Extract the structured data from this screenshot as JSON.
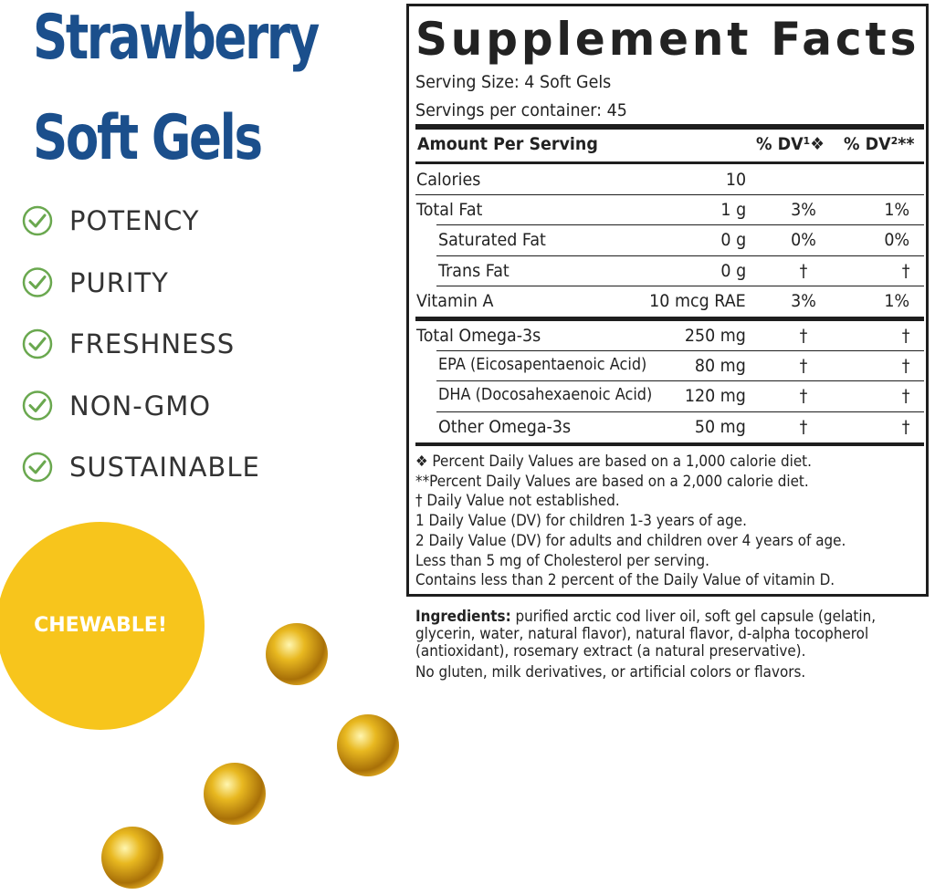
{
  "product": {
    "title_lines": [
      "Strawberry",
      "Soft Gels"
    ],
    "features": [
      "POTENCY",
      "PURITY",
      "FRESHNESS",
      "NON-GMO",
      "SUSTAINABLE"
    ],
    "badge": "CHEWABLE!"
  },
  "facts": {
    "title": "Supplement Facts",
    "serving_size": "Serving Size: 4 Soft Gels",
    "servings": "Servings per container: 45",
    "header": [
      "Amount Per Serving",
      "% DV¹❖",
      "% DV²**"
    ],
    "sections": [
      [
        {
          "name": "Calories",
          "amount": "10"
        },
        {
          "name": "Total Fat",
          "amount": "1 g",
          "dv1": "3%",
          "dv2": "1%",
          "subrows": [
            {
              "name": "Saturated Fat",
              "amount": "0 g",
              "dv1": "0%",
              "dv2": "0%"
            },
            {
              "name": "Trans Fat",
              "amount": "0 g",
              "dv1": "†",
              "dv2": "†"
            }
          ]
        },
        {
          "name": "Vitamin A",
          "amount": "10 mcg RAE",
          "dv1": "3%",
          "dv2": "1%"
        }
      ],
      [
        {
          "name": "Total Omega-3s",
          "amount": "250 mg",
          "dv1": "†",
          "dv2": "†",
          "subrows": [
            {
              "name": "EPA (Eicosapentaenoic Acid)",
              "amount": "80 mg",
              "dv1": "†",
              "dv2": "†"
            },
            {
              "name": "DHA (Docosahexaenoic Acid)",
              "amount": "120 mg",
              "dv1": "†",
              "dv2": "†"
            },
            {
              "name": "Other Omega-3s",
              "amount": "50 mg",
              "dv1": "†",
              "dv2": "†"
            }
          ]
        }
      ]
    ],
    "footnotes": [
      "❖ Percent Daily Values are based on a 1,000 calorie diet.",
      "**Percent Daily Values are based on a 2,000 calorie diet.",
      "† Daily Value not established.",
      "1 Daily Value (DV) for children 1-3 years of age.",
      "2 Daily Value (DV) for adults and children over 4 years of age.",
      "Less than 5 mg of Cholesterol per serving.",
      "Contains less than 2 percent of the Daily Value of vitamin D."
    ]
  },
  "ingredients": {
    "label": "Ingredients:",
    "text": "purified arctic cod liver oil, soft gel capsule (gelatin, glycerin, water, natural flavor), natural flavor, d-alpha tocopherol (antioxidant), rosemary extract (a natural preservative).",
    "note": "No gluten, milk derivatives, or artificial colors or flavors."
  }
}
